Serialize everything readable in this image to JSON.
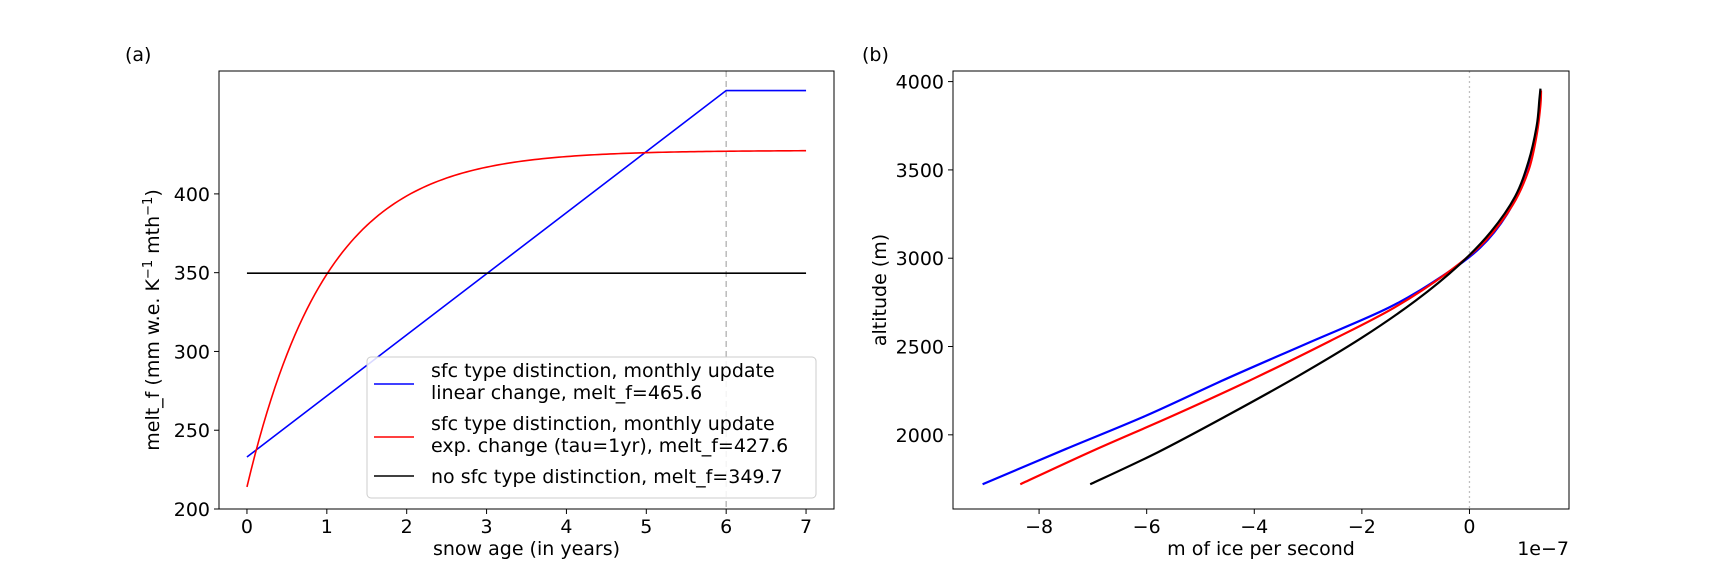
{
  "panels": {
    "a_label": "(a)",
    "b_label": "(b)"
  },
  "chart_data": [
    {
      "type": "line",
      "panel": "(a)",
      "xlabel": "snow age (in years)",
      "ylabel_main": "melt_f (mm w.e. K",
      "ylabel_sup1": "−1",
      "ylabel_mid": " mth",
      "ylabel_sup2": "−1",
      "ylabel_end": ")",
      "xlim": [
        -0.35,
        7.35
      ],
      "ylim": [
        200,
        478
      ],
      "xticks": [
        0,
        1,
        2,
        3,
        4,
        5,
        6,
        7
      ],
      "xtick_labels": [
        "0",
        "1",
        "2",
        "3",
        "4",
        "5",
        "6",
        "7"
      ],
      "yticks": [
        200,
        250,
        300,
        350,
        400
      ],
      "ytick_labels": [
        "200",
        "250",
        "300",
        "350",
        "400"
      ],
      "vline": {
        "x": 6,
        "color": "#b0b0b0",
        "style": "dashed"
      },
      "grid": false,
      "legend_position": "lower-right",
      "series": [
        {
          "name": "sfc type distinction, monthly update\nlinear change, melt_f=465.6",
          "legend_line1": "sfc type distinction, monthly update",
          "legend_line2": "linear change, melt_f=465.6",
          "color": "#0000ff",
          "kind": "linear_then_flat",
          "x_start": 0,
          "x_break": 6,
          "x_end": 7,
          "y_start": 233,
          "y_break": 465.6
        },
        {
          "name": "sfc type distinction, monthly update\nexp. change (tau=1yr), melt_f=427.6",
          "legend_line1": "sfc type distinction, monthly update",
          "legend_line2": "exp. change (tau=1yr), melt_f=427.6",
          "color": "#ff0000",
          "kind": "exponential",
          "x_start": 0,
          "x_end": 7,
          "y0": 214,
          "y_inf": 427.6,
          "tau": 1.0
        },
        {
          "name": "no sfc type distinction, melt_f=349.7",
          "legend_line1": "no sfc type distinction, melt_f=349.7",
          "color": "#000000",
          "kind": "constant",
          "x_start": 0,
          "x_end": 7,
          "y": 349.7
        }
      ]
    },
    {
      "type": "line",
      "panel": "(b)",
      "xlabel": "m of ice per second",
      "ylabel": "altitude (m)",
      "offset_text": "1e−7",
      "xlim": [
        -9.6,
        1.85
      ],
      "ylim": [
        1580,
        4060
      ],
      "xticks": [
        -8,
        -6,
        -4,
        -2,
        0
      ],
      "xtick_labels": [
        "−8",
        "−6",
        "−4",
        "−2",
        "0"
      ],
      "yticks": [
        2000,
        2500,
        3000,
        3500,
        4000
      ],
      "ytick_labels": [
        "2000",
        "2500",
        "3000",
        "3500",
        "4000"
      ],
      "vline": {
        "x": 0,
        "color": "#c0c0c0",
        "style": "dotted"
      },
      "grid": false,
      "series": [
        {
          "color": "#0000ff",
          "points": [
            [
              -9.05,
              1720
            ],
            [
              -7.5,
              1920
            ],
            [
              -6.0,
              2110
            ],
            [
              -4.5,
              2320
            ],
            [
              -3.0,
              2520
            ],
            [
              -1.5,
              2720
            ],
            [
              -0.5,
              2900
            ],
            [
              0.2,
              3060
            ],
            [
              0.7,
              3250
            ],
            [
              1.0,
              3450
            ],
            [
              1.2,
              3650
            ],
            [
              1.3,
              3850
            ],
            [
              1.32,
              3950
            ]
          ]
        },
        {
          "color": "#ff0000",
          "points": [
            [
              -8.35,
              1720
            ],
            [
              -7.0,
              1910
            ],
            [
              -5.5,
              2110
            ],
            [
              -4.0,
              2320
            ],
            [
              -2.6,
              2530
            ],
            [
              -1.4,
              2720
            ],
            [
              -0.4,
              2920
            ],
            [
              0.3,
              3100
            ],
            [
              0.8,
              3300
            ],
            [
              1.1,
              3500
            ],
            [
              1.25,
              3700
            ],
            [
              1.32,
              3870
            ],
            [
              1.33,
              3950
            ]
          ]
        },
        {
          "color": "#000000",
          "points": [
            [
              -7.05,
              1720
            ],
            [
              -5.8,
              1900
            ],
            [
              -4.5,
              2110
            ],
            [
              -3.2,
              2330
            ],
            [
              -2.0,
              2550
            ],
            [
              -1.0,
              2760
            ],
            [
              -0.2,
              2960
            ],
            [
              0.4,
              3150
            ],
            [
              0.85,
              3350
            ],
            [
              1.1,
              3550
            ],
            [
              1.25,
              3750
            ],
            [
              1.3,
              3900
            ],
            [
              1.32,
              3960
            ]
          ]
        }
      ]
    }
  ]
}
